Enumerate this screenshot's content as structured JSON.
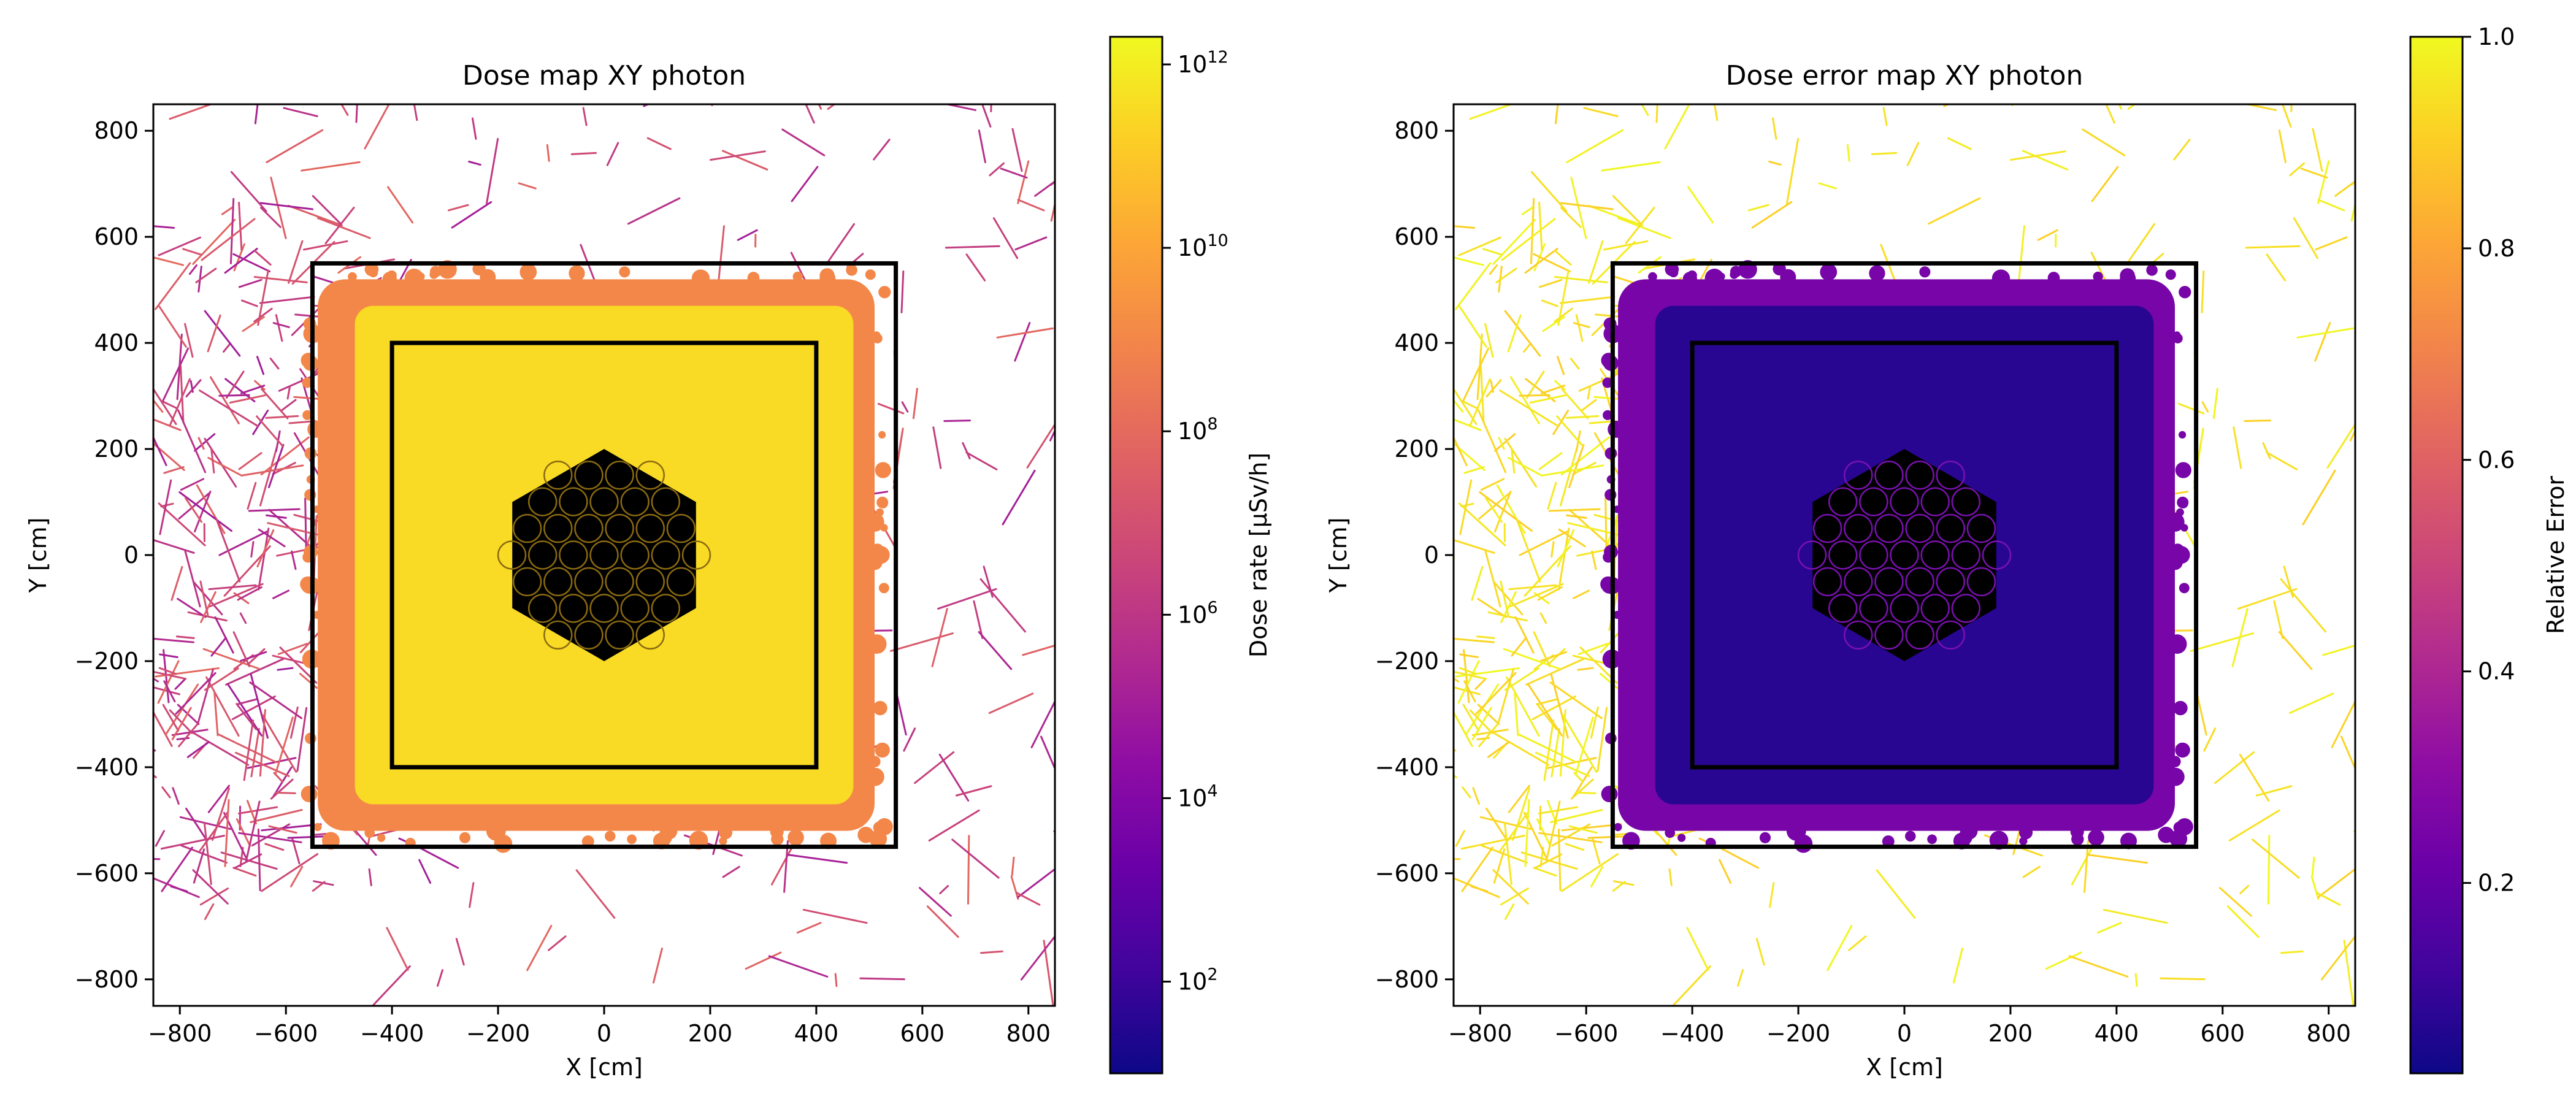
{
  "chart_data": [
    {
      "type": "heatmap",
      "title": "Dose map XY photon",
      "xlabel": "X [cm]",
      "ylabel": "Y [cm]",
      "xlim": [
        -850,
        850
      ],
      "ylim": [
        -850,
        850
      ],
      "xticks": [
        -800,
        -600,
        -400,
        -200,
        0,
        200,
        400,
        600,
        800
      ],
      "yticks": [
        -800,
        -600,
        -400,
        -200,
        0,
        200,
        400,
        600,
        800
      ],
      "xtick_labels": [
        "−800",
        "−600",
        "−400",
        "−200",
        "0",
        "200",
        "400",
        "600",
        "800"
      ],
      "ytick_labels": [
        "−800",
        "−600",
        "−400",
        "−200",
        "0",
        "200",
        "400",
        "600",
        "800"
      ],
      "colormap": "plasma",
      "color_scale": "log",
      "colorbar": {
        "label": "Dose rate [µSv/h]",
        "range": [
          10,
          2000000000000.0
        ],
        "ticks": [
          100,
          10000,
          1000000,
          100000000,
          10000000000,
          1000000000000
        ],
        "tick_bases": [
          "10",
          "10",
          "10",
          "10",
          "10",
          "10"
        ],
        "tick_exponents": [
          "2",
          "4",
          "6",
          "8",
          "10",
          "12"
        ]
      },
      "overlays": {
        "outer_square": [
          -550,
          -550,
          550,
          550
        ],
        "inner_square": [
          -400,
          -400,
          400,
          400
        ],
        "hexagon_circumradius": 200
      },
      "regions": {
        "core_plateau_value": 300000000000.0,
        "fringe_value": 1000000000.0,
        "streak_value_range": [
          100000.0,
          100000000.0
        ]
      }
    },
    {
      "type": "heatmap",
      "title": "Dose error map XY photon",
      "xlabel": "X [cm]",
      "ylabel": "Y [cm]",
      "xlim": [
        -850,
        850
      ],
      "ylim": [
        -850,
        850
      ],
      "xticks": [
        -800,
        -600,
        -400,
        -200,
        0,
        200,
        400,
        600,
        800
      ],
      "yticks": [
        -800,
        -600,
        -400,
        -200,
        0,
        200,
        400,
        600,
        800
      ],
      "xtick_labels": [
        "−800",
        "−600",
        "−400",
        "−200",
        "0",
        "200",
        "400",
        "600",
        "800"
      ],
      "ytick_labels": [
        "−800",
        "−600",
        "−400",
        "−200",
        "0",
        "200",
        "400",
        "600",
        "800"
      ],
      "colormap": "plasma",
      "color_scale": "linear",
      "colorbar": {
        "label": "Relative Error",
        "range": [
          0.02,
          1.0
        ],
        "ticks": [
          0.2,
          0.4,
          0.6,
          0.8,
          1.0
        ],
        "tick_labels": [
          "0.2",
          "0.4",
          "0.6",
          "0.8",
          "1.0"
        ]
      },
      "overlays": {
        "outer_square": [
          -550,
          -550,
          550,
          550
        ],
        "inner_square": [
          -400,
          -400,
          400,
          400
        ],
        "hexagon_circumradius": 200
      },
      "regions": {
        "core_plateau_value": 0.07,
        "fringe_value": 0.25,
        "streak_value_range": [
          0.9,
          1.0
        ]
      }
    }
  ],
  "colors": {
    "plasma_stops": [
      "#0d0887",
      "#41049d",
      "#6a00a8",
      "#8f0da4",
      "#b12a90",
      "#cc4778",
      "#e16462",
      "#f2844b",
      "#fca636",
      "#fcce25",
      "#f0f921"
    ],
    "frame": "#000000",
    "background": "#ffffff"
  }
}
